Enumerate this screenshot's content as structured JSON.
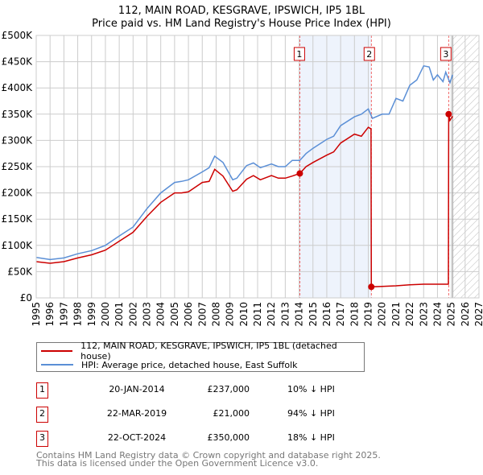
{
  "chart_data": {
    "type": "line",
    "title": "112, MAIN ROAD, KESGRAVE, IPSWICH, IP5 1BL",
    "subtitle": "Price paid vs. HM Land Registry's House Price Index (HPI)",
    "xlim": [
      1995,
      2027
    ],
    "ylim": [
      0,
      500000
    ],
    "x_ticks": [
      "1995",
      "1996",
      "1997",
      "1998",
      "1999",
      "2000",
      "2001",
      "2002",
      "2003",
      "2004",
      "2005",
      "2006",
      "2007",
      "2008",
      "2009",
      "2010",
      "2011",
      "2012",
      "2013",
      "2014",
      "2015",
      "2016",
      "2017",
      "2018",
      "2019",
      "2020",
      "2021",
      "2022",
      "2023",
      "2024",
      "2025",
      "2026",
      "2027"
    ],
    "y_ticks": [
      {
        "v": 0,
        "label": "£0"
      },
      {
        "v": 50000,
        "label": "£50K"
      },
      {
        "v": 100000,
        "label": "£100K"
      },
      {
        "v": 150000,
        "label": "£150K"
      },
      {
        "v": 200000,
        "label": "£200K"
      },
      {
        "v": 250000,
        "label": "£250K"
      },
      {
        "v": 300000,
        "label": "£300K"
      },
      {
        "v": 350000,
        "label": "£350K"
      },
      {
        "v": 400000,
        "label": "£400K"
      },
      {
        "v": 450000,
        "label": "£450K"
      },
      {
        "v": 500000,
        "label": "£500K"
      }
    ],
    "grid": true,
    "colors": {
      "property": "#cc0000",
      "hpi": "#5b8fd6",
      "shade": "#eef3fc"
    },
    "shaded_range": [
      2014.05,
      2019.22
    ],
    "forecast_hatch_from": 2025.1,
    "series": [
      {
        "name": "112, MAIN ROAD, KESGRAVE, IPSWICH, IP5 1BL (detached house)",
        "color": "#cc0000",
        "x": [
          1995,
          1996,
          1997,
          1998,
          1999,
          2000,
          2001,
          2002,
          2003,
          2004,
          2005,
          2005.5,
          2006,
          2007,
          2007.5,
          2007.9,
          2008.5,
          2009.2,
          2009.5,
          2010.2,
          2010.7,
          2011.2,
          2012,
          2012.5,
          2013,
          2013.5,
          2014.05,
          2014.5,
          2015,
          2016,
          2016.5,
          2017,
          2018,
          2018.5,
          2019.0,
          2019.2,
          2019.22,
          2020,
          2021,
          2022,
          2023,
          2024,
          2024.79,
          2024.81,
          2024.9,
          2025.1
        ],
        "y": [
          69000,
          66000,
          69000,
          76000,
          82000,
          91000,
          108000,
          125000,
          155000,
          182000,
          200000,
          200000,
          202000,
          220000,
          222000,
          245000,
          232000,
          203000,
          206000,
          226000,
          233000,
          225000,
          233000,
          228000,
          228000,
          232000,
          237000,
          250000,
          258000,
          272000,
          278000,
          295000,
          312000,
          308000,
          325000,
          322000,
          21000,
          22000,
          23000,
          25000,
          26000,
          26000,
          26000,
          350000,
          338000,
          346000
        ]
      },
      {
        "name": "HPI: Average price, detached house, East Suffolk",
        "color": "#5b8fd6",
        "x": [
          1995,
          1996,
          1997,
          1998,
          1999,
          2000,
          2001,
          2002,
          2003,
          2004,
          2005,
          2005.5,
          2006,
          2007,
          2007.5,
          2007.9,
          2008.5,
          2009.2,
          2009.5,
          2010.2,
          2010.7,
          2011.2,
          2012,
          2012.5,
          2013,
          2013.5,
          2014.05,
          2014.5,
          2015,
          2016,
          2016.5,
          2017,
          2018,
          2018.5,
          2019.0,
          2019.3,
          2020,
          2020.5,
          2021,
          2021.5,
          2022,
          2022.5,
          2023,
          2023.4,
          2023.7,
          2024,
          2024.4,
          2024.6,
          2024.9,
          2025.1
        ],
        "y": [
          77000,
          73000,
          76000,
          84000,
          90000,
          100000,
          118000,
          135000,
          170000,
          200000,
          220000,
          222000,
          225000,
          240000,
          248000,
          270000,
          258000,
          225000,
          228000,
          252000,
          257000,
          248000,
          255000,
          250000,
          250000,
          262000,
          262000,
          275000,
          285000,
          302000,
          308000,
          328000,
          345000,
          350000,
          360000,
          342000,
          350000,
          350000,
          380000,
          375000,
          405000,
          415000,
          442000,
          440000,
          415000,
          425000,
          412000,
          430000,
          410000,
          425000
        ]
      }
    ],
    "annotations": [
      {
        "label": "1",
        "x": 2014.05,
        "y": 237000
      },
      {
        "label": "2",
        "x": 2019.22,
        "y": 21000
      },
      {
        "label": "3",
        "x": 2024.81,
        "y": 350000
      }
    ]
  },
  "legend": {
    "property": "112, MAIN ROAD, KESGRAVE, IPSWICH, IP5 1BL (detached house)",
    "hpi": "HPI: Average price, detached house, East Suffolk"
  },
  "transactions": [
    {
      "num": "1",
      "date": "20-JAN-2014",
      "price": "£237,000",
      "hpi": "10% ↓ HPI"
    },
    {
      "num": "2",
      "date": "22-MAR-2019",
      "price": "£21,000",
      "hpi": "94% ↓ HPI"
    },
    {
      "num": "3",
      "date": "22-OCT-2024",
      "price": "£350,000",
      "hpi": "18% ↓ HPI"
    }
  ],
  "footer": {
    "line1": "Contains HM Land Registry data © Crown copyright and database right 2025.",
    "line2": "This data is licensed under the Open Government Licence v3.0."
  }
}
